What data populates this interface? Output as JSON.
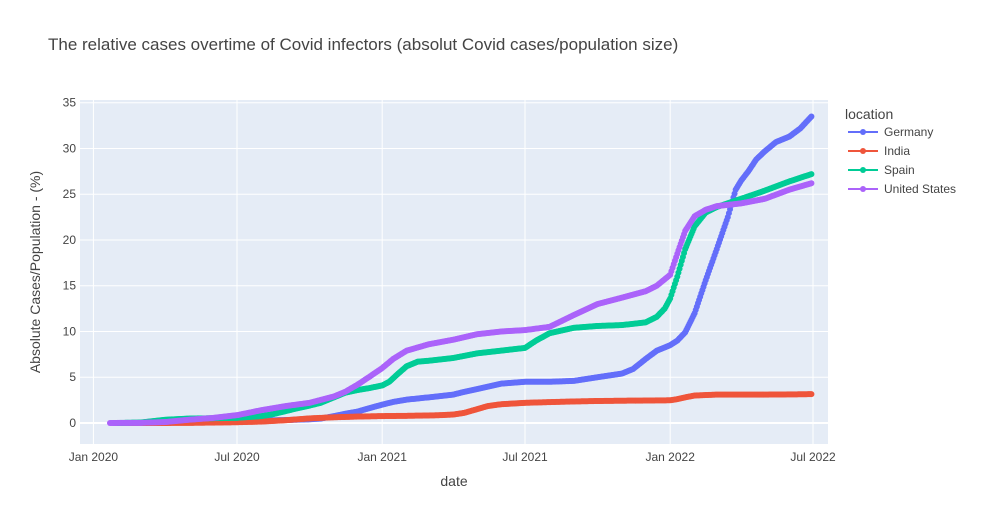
{
  "chart_data": {
    "type": "line",
    "title": "The relative cases overtime of Covid infectors (absolut Covid cases/population size)",
    "xlabel": "date",
    "ylabel": "Absolute Cases/Population - (%)",
    "xlim": [
      "2019-12-15",
      "2022-07-20"
    ],
    "ylim": [
      -2.3,
      35.3
    ],
    "xticks": [
      {
        "date": "2020-01-01",
        "label": "Jan 2020"
      },
      {
        "date": "2020-07-01",
        "label": "Jul 2020"
      },
      {
        "date": "2021-01-01",
        "label": "Jan 2021"
      },
      {
        "date": "2021-07-01",
        "label": "Jul 2021"
      },
      {
        "date": "2022-01-01",
        "label": "Jan 2022"
      },
      {
        "date": "2022-07-01",
        "label": "Jul 2022"
      }
    ],
    "yticks": [
      0,
      5,
      10,
      15,
      20,
      25,
      30,
      35
    ],
    "grid": true,
    "plot_bg": "#E5ECF6",
    "mode": "lines+markers",
    "legend": {
      "title": "location",
      "placement": "right"
    },
    "series": [
      {
        "name": "Germany",
        "color": "#636EFA",
        "x": [
          "2020-01-27",
          "2020-03-01",
          "2020-04-01",
          "2020-05-01",
          "2020-06-01",
          "2020-07-01",
          "2020-08-01",
          "2020-09-01",
          "2020-10-01",
          "2020-10-15",
          "2020-11-01",
          "2020-11-15",
          "2020-12-01",
          "2020-12-15",
          "2021-01-01",
          "2021-01-15",
          "2021-02-01",
          "2021-03-01",
          "2021-04-01",
          "2021-04-15",
          "2021-05-01",
          "2021-06-01",
          "2021-07-01",
          "2021-08-01",
          "2021-09-01",
          "2021-10-01",
          "2021-11-01",
          "2021-11-15",
          "2021-12-01",
          "2021-12-15",
          "2022-01-01",
          "2022-01-10",
          "2022-01-20",
          "2022-02-01",
          "2022-02-15",
          "2022-03-01",
          "2022-03-15",
          "2022-03-25",
          "2022-04-01",
          "2022-04-10",
          "2022-04-20",
          "2022-05-01",
          "2022-05-15",
          "2022-06-01",
          "2022-06-15",
          "2022-06-29"
        ],
        "y": [
          0,
          0,
          0.1,
          0.2,
          0.22,
          0.24,
          0.27,
          0.32,
          0.4,
          0.48,
          0.75,
          1.0,
          1.25,
          1.6,
          2.0,
          2.3,
          2.55,
          2.8,
          3.1,
          3.4,
          3.7,
          4.3,
          4.5,
          4.5,
          4.6,
          5.0,
          5.4,
          5.9,
          7.0,
          7.9,
          8.5,
          9.0,
          9.9,
          12.0,
          15.6,
          19.0,
          22.5,
          25.5,
          26.5,
          27.5,
          28.8,
          29.7,
          30.7,
          31.3,
          32.2,
          33.5
        ]
      },
      {
        "name": "India",
        "color": "#EF553B",
        "x": [
          "2020-01-30",
          "2020-04-01",
          "2020-05-01",
          "2020-06-01",
          "2020-07-01",
          "2020-08-01",
          "2020-09-01",
          "2020-10-01",
          "2020-11-01",
          "2020-12-01",
          "2021-01-01",
          "2021-02-01",
          "2021-03-01",
          "2021-03-15",
          "2021-04-01",
          "2021-04-15",
          "2021-05-01",
          "2021-05-15",
          "2021-06-01",
          "2021-07-01",
          "2021-08-01",
          "2021-09-01",
          "2021-10-01",
          "2021-11-01",
          "2021-12-01",
          "2022-01-01",
          "2022-01-10",
          "2022-01-20",
          "2022-02-01",
          "2022-03-01",
          "2022-04-01",
          "2022-05-01",
          "2022-06-01",
          "2022-06-29"
        ],
        "y": [
          0,
          0,
          0.01,
          0.04,
          0.08,
          0.15,
          0.3,
          0.5,
          0.62,
          0.7,
          0.75,
          0.78,
          0.82,
          0.85,
          0.92,
          1.1,
          1.5,
          1.85,
          2.05,
          2.2,
          2.28,
          2.35,
          2.4,
          2.43,
          2.45,
          2.48,
          2.6,
          2.8,
          3.0,
          3.1,
          3.1,
          3.1,
          3.12,
          3.15
        ]
      },
      {
        "name": "Spain",
        "color": "#00CC96",
        "x": [
          "2020-02-01",
          "2020-03-01",
          "2020-04-01",
          "2020-05-01",
          "2020-06-01",
          "2020-07-01",
          "2020-08-01",
          "2020-08-15",
          "2020-09-01",
          "2020-09-15",
          "2020-10-01",
          "2020-10-15",
          "2020-11-01",
          "2020-11-15",
          "2020-12-01",
          "2020-12-15",
          "2021-01-01",
          "2021-01-10",
          "2021-01-20",
          "2021-02-01",
          "2021-02-15",
          "2021-03-01",
          "2021-04-01",
          "2021-05-01",
          "2021-06-01",
          "2021-07-01",
          "2021-07-15",
          "2021-08-01",
          "2021-09-01",
          "2021-10-01",
          "2021-11-01",
          "2021-12-01",
          "2021-12-15",
          "2021-12-25",
          "2022-01-01",
          "2022-01-10",
          "2022-01-20",
          "2022-02-01",
          "2022-02-15",
          "2022-03-01",
          "2022-04-01",
          "2022-05-01",
          "2022-06-01",
          "2022-06-29"
        ],
        "y": [
          0,
          0.05,
          0.35,
          0.48,
          0.52,
          0.56,
          0.75,
          0.95,
          1.3,
          1.6,
          1.9,
          2.2,
          2.8,
          3.3,
          3.6,
          3.8,
          4.1,
          4.5,
          5.3,
          6.2,
          6.7,
          6.8,
          7.1,
          7.6,
          7.9,
          8.2,
          9.0,
          9.8,
          10.4,
          10.6,
          10.7,
          11.0,
          11.6,
          12.5,
          13.6,
          16.0,
          19.0,
          21.5,
          23.0,
          23.6,
          24.5,
          25.4,
          26.4,
          27.2
        ]
      },
      {
        "name": "United States",
        "color": "#AB63FA",
        "x": [
          "2020-01-22",
          "2020-03-01",
          "2020-04-01",
          "2020-05-01",
          "2020-06-01",
          "2020-07-01",
          "2020-08-01",
          "2020-09-01",
          "2020-10-01",
          "2020-11-01",
          "2020-11-15",
          "2020-12-01",
          "2020-12-15",
          "2021-01-01",
          "2021-01-15",
          "2021-02-01",
          "2021-03-01",
          "2021-04-01",
          "2021-05-01",
          "2021-06-01",
          "2021-07-01",
          "2021-08-01",
          "2021-09-01",
          "2021-10-01",
          "2021-11-01",
          "2021-12-01",
          "2021-12-15",
          "2022-01-01",
          "2022-01-10",
          "2022-01-20",
          "2022-02-01",
          "2022-02-15",
          "2022-03-01",
          "2022-04-01",
          "2022-05-01",
          "2022-06-01",
          "2022-06-29"
        ],
        "y": [
          0,
          0.01,
          0.1,
          0.35,
          0.55,
          0.85,
          1.4,
          1.85,
          2.2,
          2.9,
          3.4,
          4.2,
          5.0,
          6.0,
          7.0,
          7.9,
          8.6,
          9.1,
          9.7,
          10.0,
          10.15,
          10.5,
          11.8,
          13.0,
          13.7,
          14.4,
          15.0,
          16.2,
          18.5,
          21.0,
          22.6,
          23.3,
          23.7,
          24.0,
          24.5,
          25.5,
          26.2
        ]
      }
    ]
  }
}
